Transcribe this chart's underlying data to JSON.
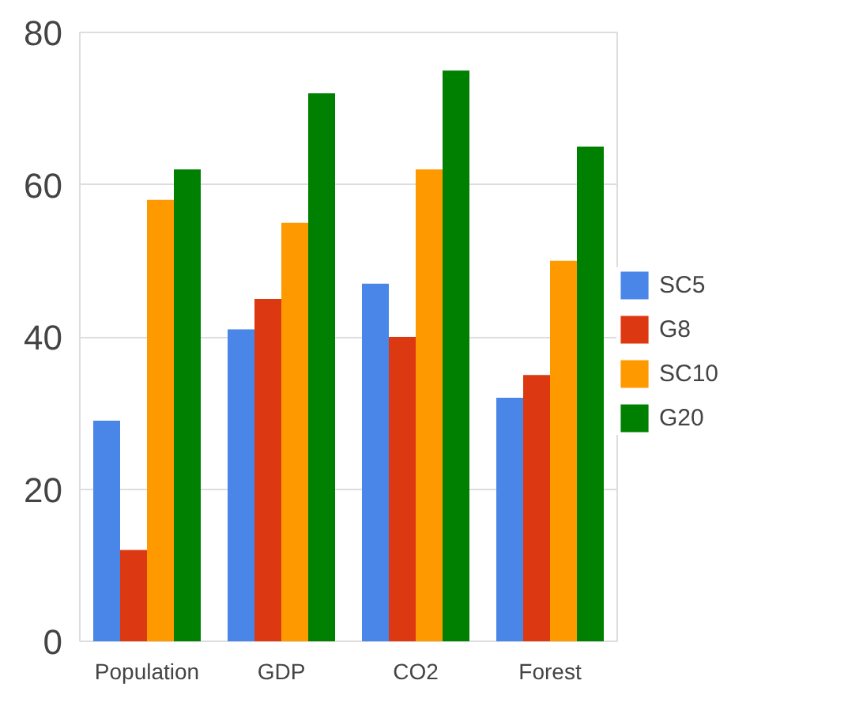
{
  "chart_data": {
    "type": "bar",
    "categories": [
      "Population",
      "GDP",
      "CO2",
      "Forest"
    ],
    "series": [
      {
        "name": "SC5",
        "color": "#4a86e8",
        "values": [
          29,
          41,
          47,
          32
        ]
      },
      {
        "name": "G8",
        "color": "#dc3912",
        "values": [
          12,
          45,
          40,
          35
        ]
      },
      {
        "name": "SC10",
        "color": "#ff9900",
        "values": [
          58,
          55,
          62,
          50
        ]
      },
      {
        "name": "G20",
        "color": "#008000",
        "values": [
          62,
          72,
          75,
          65
        ]
      }
    ],
    "ylim": [
      0,
      80
    ],
    "yticks": [
      0,
      20,
      40,
      60,
      80
    ],
    "grid": "y",
    "legend": "right"
  }
}
